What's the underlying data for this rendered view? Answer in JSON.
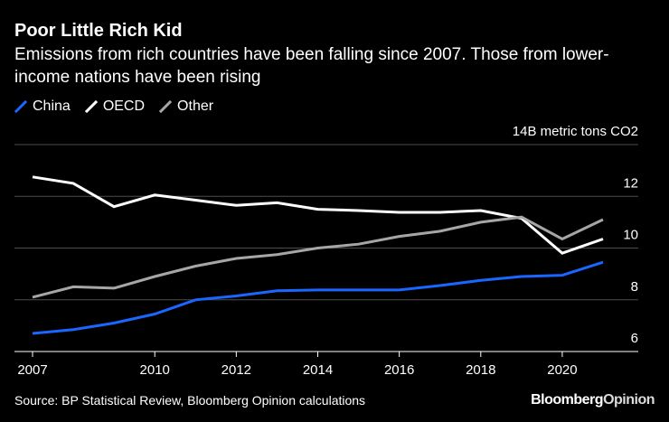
{
  "header": {
    "title": "Poor Little Rich Kid",
    "subtitle": "Emissions from rich countries have been falling since 2007. Those from lower-income nations have been rising"
  },
  "legend": [
    {
      "label": "China",
      "color": "#1a66ff",
      "icon": "slash-line-icon"
    },
    {
      "label": "OECD",
      "color": "#ffffff",
      "icon": "slash-line-icon"
    },
    {
      "label": "Other",
      "color": "#a6a6a6",
      "icon": "slash-line-icon"
    }
  ],
  "chart_data": {
    "type": "line",
    "title": "Poor Little Rich Kid",
    "subtitle": "Emissions from rich countries have been falling since 2007. Those from lower-income nations have been rising",
    "unit_label": "14B metric tons CO2",
    "x": [
      2007,
      2008,
      2009,
      2010,
      2011,
      2012,
      2013,
      2014,
      2015,
      2016,
      2017,
      2018,
      2019,
      2020,
      2021
    ],
    "series": [
      {
        "name": "China",
        "color": "#1a66ff",
        "values": [
          6.7,
          6.85,
          7.1,
          7.45,
          8.0,
          8.15,
          8.35,
          8.38,
          8.38,
          8.38,
          8.55,
          8.75,
          8.9,
          8.95,
          9.45
        ]
      },
      {
        "name": "OECD",
        "color": "#ffffff",
        "values": [
          12.75,
          12.5,
          11.6,
          12.05,
          11.85,
          11.65,
          11.75,
          11.5,
          11.45,
          11.38,
          11.38,
          11.45,
          11.15,
          9.8,
          10.35
        ]
      },
      {
        "name": "Other",
        "color": "#a6a6a6",
        "values": [
          8.1,
          8.5,
          8.45,
          8.9,
          9.3,
          9.6,
          9.75,
          10.0,
          10.15,
          10.45,
          10.65,
          11.0,
          11.2,
          10.35,
          11.1
        ]
      }
    ],
    "x_ticks": [
      2007,
      2010,
      2012,
      2014,
      2016,
      2018,
      2020
    ],
    "x_tick_labels": [
      "2007",
      "2010",
      "2012",
      "2014",
      "2016",
      "2018",
      "2020"
    ],
    "y_ticks": [
      6,
      8,
      10,
      12
    ],
    "y_tick_labels": [
      "6",
      "8",
      "10",
      "12"
    ],
    "ylim": [
      5,
      14
    ],
    "xlim": [
      2007,
      2021
    ],
    "grid": true,
    "legend_position": "top-left",
    "xlabel": "",
    "ylabel": ""
  },
  "footer": {
    "source": "Source: BP Statistical Review, Bloomberg Opinion calculations",
    "brand_part1": "Bloomberg",
    "brand_part2": "Opinion"
  }
}
